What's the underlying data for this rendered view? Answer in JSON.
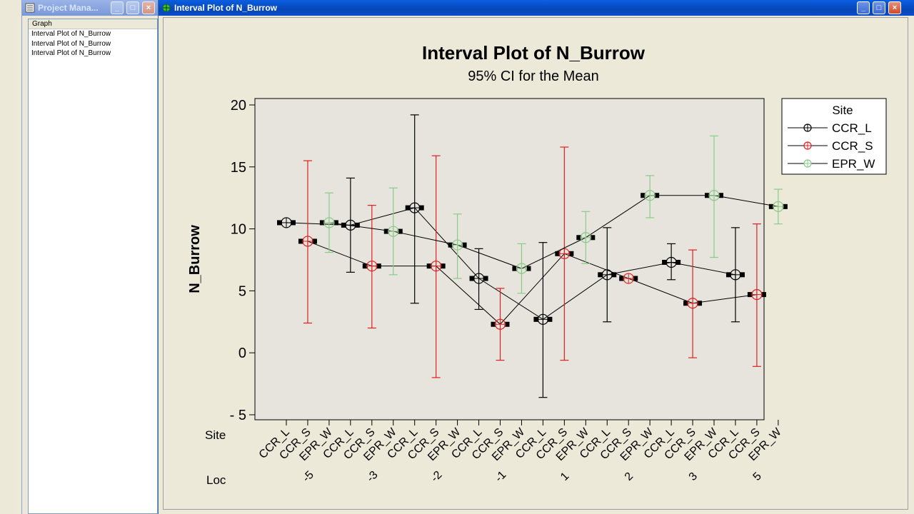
{
  "project_manager": {
    "title": "Project Mana...",
    "column_header": "Graph",
    "items": [
      "Interval Plot of N_Burrow",
      "Interval Plot of N_Burrow",
      "Interval Plot of N_Burrow"
    ]
  },
  "graph_window": {
    "title": "Interval Plot of N_Burrow"
  },
  "chart_data": {
    "type": "interval",
    "title": "Interval Plot of N_Burrow",
    "subtitle": "95% CI for the Mean",
    "ylabel": "N_Burrow",
    "ylim": [
      -5,
      20
    ],
    "yticks": [
      -5,
      0,
      5,
      10,
      15,
      20
    ],
    "x_row_labels": [
      "Site",
      "Loc"
    ],
    "locations": [
      "-5",
      "-3",
      "-2",
      "-1",
      "1",
      "2",
      "3",
      "5"
    ],
    "legend_title": "Site",
    "legend_position": "right",
    "series": [
      {
        "name": "CCR_L",
        "color": "#000000",
        "mean": [
          10.5,
          10.3,
          11.7,
          6.0,
          2.7,
          6.3,
          7.3,
          6.3
        ],
        "lower": [
          null,
          6.5,
          4.0,
          3.5,
          -3.6,
          2.5,
          5.9,
          2.5
        ],
        "upper": [
          null,
          14.1,
          19.2,
          8.4,
          8.9,
          10.1,
          8.8,
          10.1
        ]
      },
      {
        "name": "CCR_S",
        "color": "#e02020",
        "mean": [
          9.0,
          7.0,
          7.0,
          2.3,
          8.0,
          6.0,
          4.0,
          4.7
        ],
        "lower": [
          2.4,
          2.0,
          -2.0,
          -0.6,
          -0.6,
          null,
          -0.4,
          -1.1
        ],
        "upper": [
          15.5,
          11.9,
          15.9,
          5.2,
          16.6,
          null,
          8.3,
          10.4
        ]
      },
      {
        "name": "EPR_W",
        "color": "#88cc88",
        "mean": [
          10.5,
          9.8,
          8.7,
          6.8,
          9.3,
          12.7,
          12.7,
          11.8
        ],
        "lower": [
          8.1,
          6.3,
          6.0,
          4.8,
          7.2,
          10.9,
          7.7,
          10.4
        ],
        "upper": [
          12.9,
          13.3,
          11.2,
          8.8,
          11.4,
          14.3,
          17.5,
          13.2
        ]
      }
    ]
  }
}
